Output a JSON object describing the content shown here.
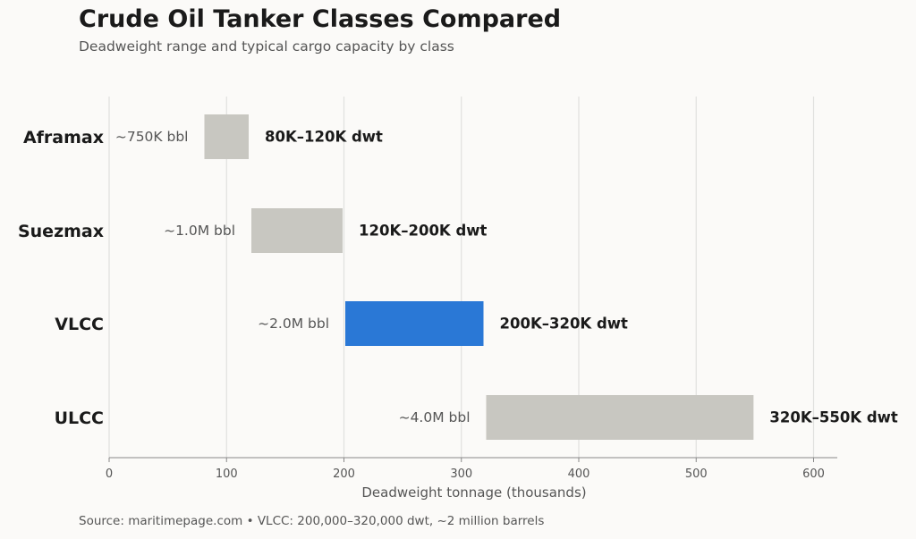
{
  "header": {
    "title": "Crude Oil Tanker Classes Compared",
    "subtitle": "Deadweight range and typical cargo capacity by class"
  },
  "footer": {
    "source": "Source: maritimepage.com  •  VLCC: 200,000–320,000 dwt, ~2 million barrels"
  },
  "chart_data": {
    "type": "bar",
    "orientation": "horizontal-range",
    "xlabel": "Deadweight tonnage (thousands)",
    "xlim": [
      0,
      620
    ],
    "xticks": [
      0,
      100,
      200,
      300,
      400,
      500,
      600
    ],
    "grid": "vertical",
    "categories": [
      "Aframax",
      "Suezmax",
      "VLCC",
      "ULCC"
    ],
    "ranges": [
      {
        "name": "Aframax",
        "start": 80,
        "end": 120,
        "range_label": "80K–120K dwt",
        "capacity_label": "~750K bbl",
        "color": "#c8c7c1",
        "highlight": false
      },
      {
        "name": "Suezmax",
        "start": 120,
        "end": 200,
        "range_label": "120K–200K dwt",
        "capacity_label": "~1.0M bbl",
        "color": "#c8c7c1",
        "highlight": false
      },
      {
        "name": "VLCC",
        "start": 200,
        "end": 320,
        "range_label": "200K–320K dwt",
        "capacity_label": "~2.0M bbl",
        "color": "#2a78d6",
        "highlight": true
      },
      {
        "name": "ULCC",
        "start": 320,
        "end": 550,
        "range_label": "320K–550K dwt",
        "capacity_label": "~4.0M bbl",
        "color": "#c8c7c1",
        "highlight": false
      }
    ]
  }
}
